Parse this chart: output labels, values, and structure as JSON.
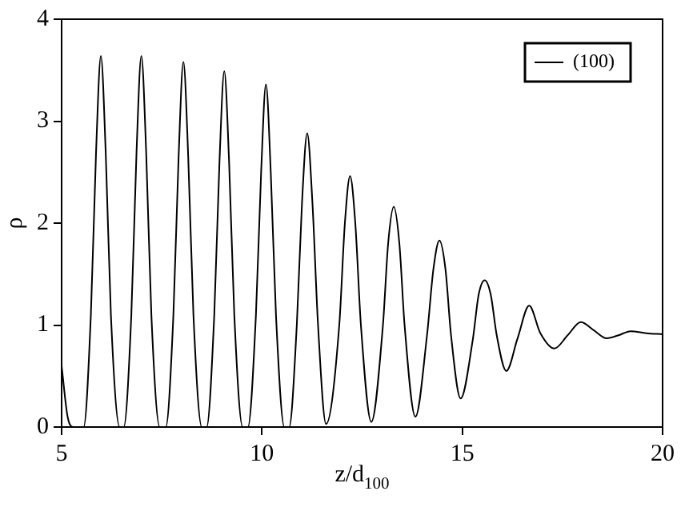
{
  "chart_data": {
    "type": "line",
    "xlabel": "z/d$_{100}$",
    "ylabel": "ρ",
    "xlim": [
      5,
      20
    ],
    "ylim": [
      0,
      4
    ],
    "xticks": [
      5,
      10,
      15,
      20
    ],
    "yticks": [
      0,
      1,
      2,
      3,
      4
    ],
    "grid": false,
    "legend": "top right",
    "marker": "none",
    "line_style": "solid",
    "series": [
      {
        "name": "(100)",
        "color": "#000000",
        "x": [
          5.0,
          5.15,
          5.3,
          5.55,
          5.73,
          5.86,
          5.98,
          6.1,
          6.23,
          6.45,
          6.55,
          6.74,
          6.87,
          6.99,
          7.11,
          7.24,
          7.45,
          7.6,
          7.79,
          7.92,
          8.04,
          8.16,
          8.29,
          8.5,
          8.62,
          8.81,
          8.94,
          9.06,
          9.18,
          9.31,
          9.52,
          9.65,
          9.85,
          9.98,
          10.1,
          10.22,
          10.35,
          10.56,
          10.68,
          10.87,
          11.0,
          11.13,
          11.26,
          11.4,
          11.6,
          11.93,
          12.07,
          12.2,
          12.33,
          12.47,
          12.73,
          13.02,
          13.15,
          13.29,
          13.43,
          13.56,
          13.83,
          14.12,
          14.28,
          14.43,
          14.58,
          14.72,
          14.96,
          15.26,
          15.41,
          15.56,
          15.71,
          15.86,
          16.1,
          16.38,
          16.67,
          16.95,
          17.3,
          17.63,
          17.96,
          18.28,
          18.6,
          18.9,
          19.2,
          19.6,
          20.0
        ],
        "values": [
          0.6,
          0.1,
          0,
          0,
          1.1,
          2.7,
          3.64,
          2.7,
          1.1,
          0,
          0,
          1.1,
          2.7,
          3.64,
          2.7,
          1.1,
          0,
          0,
          1.1,
          2.65,
          3.58,
          2.65,
          1.1,
          0,
          0,
          1.1,
          2.6,
          3.49,
          2.6,
          1.1,
          0,
          0,
          1.1,
          2.5,
          3.36,
          2.5,
          1.1,
          0,
          0,
          1.0,
          2.2,
          2.88,
          2.2,
          1.0,
          0.03,
          1.0,
          2.0,
          2.46,
          2.0,
          1.0,
          0.05,
          1.0,
          1.8,
          2.16,
          1.8,
          1.0,
          0.1,
          0.9,
          1.55,
          1.83,
          1.55,
          0.9,
          0.28,
          0.85,
          1.3,
          1.44,
          1.3,
          0.9,
          0.55,
          0.87,
          1.19,
          0.92,
          0.77,
          0.9,
          1.03,
          0.95,
          0.87,
          0.9,
          0.94,
          0.92,
          0.91
        ]
      }
    ]
  }
}
